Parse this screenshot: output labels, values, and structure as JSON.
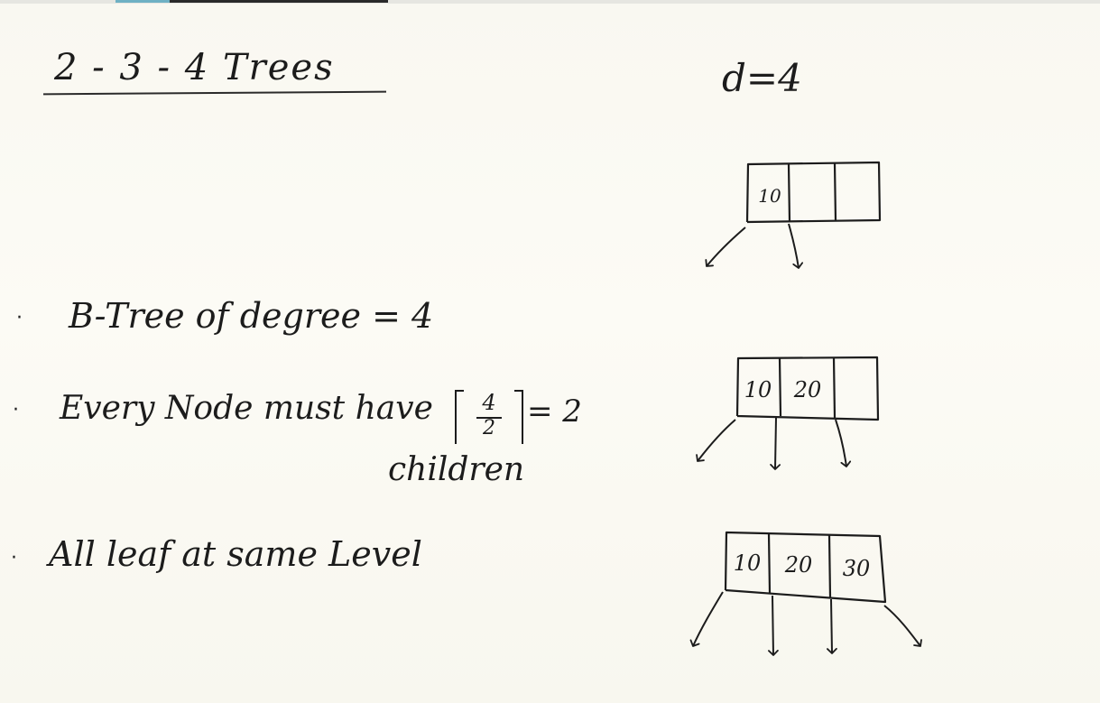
{
  "title": "2 - 3 - 4 Trees",
  "degree_label": "d=4",
  "bullets": {
    "b1": {
      "symbol": "·",
      "text": "B-Tree of degree = 4"
    },
    "b2": {
      "symbol": "·",
      "text": "Every Node must have",
      "ceil_numerator": "4",
      "ceil_denominator": "2",
      "ceil_result": "= 2",
      "continuation": "children"
    },
    "b3": {
      "symbol": "·",
      "text": "All leaf at same Level"
    }
  },
  "nodes": {
    "n1": {
      "keys": [
        "10"
      ]
    },
    "n2": {
      "keys": [
        "10",
        "20"
      ]
    },
    "n3": {
      "keys": [
        "10",
        "20",
        "30"
      ]
    }
  },
  "colors": {
    "ink": "#1c1c1c",
    "board": "#fbfaf3",
    "accent": "#6fb1c4"
  }
}
